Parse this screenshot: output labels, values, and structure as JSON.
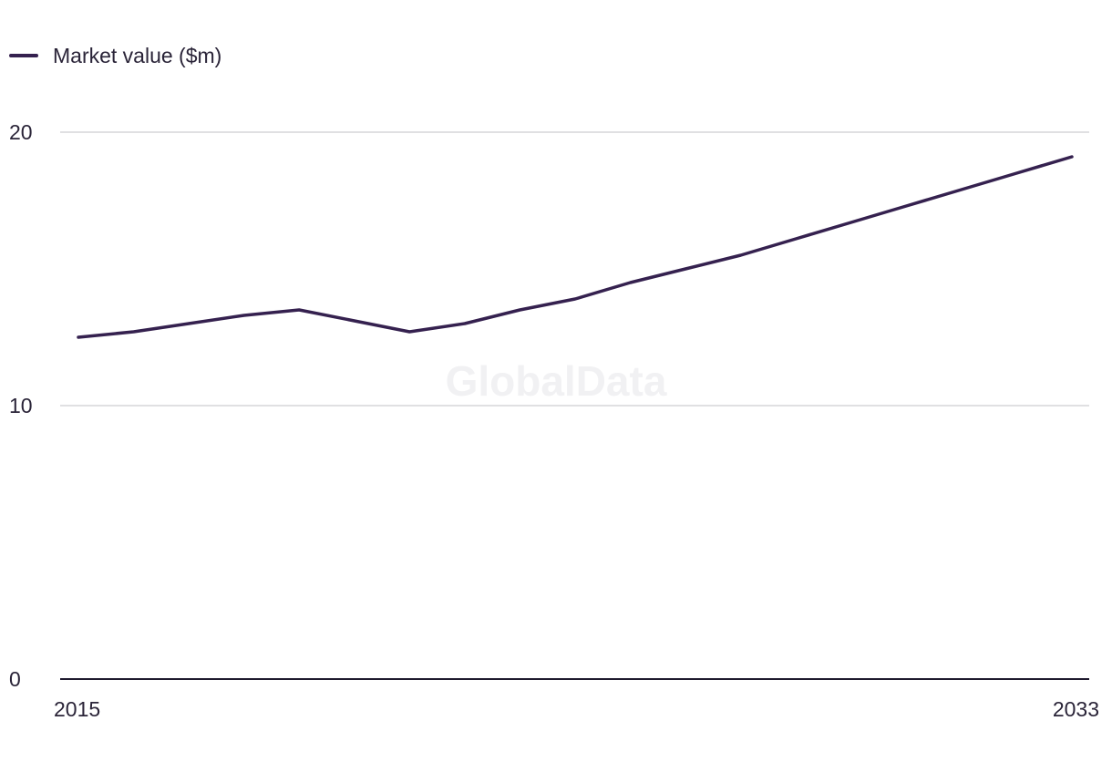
{
  "legend": {
    "label": "Market value ($m)"
  },
  "watermark": "GlobalData",
  "colors": {
    "series": "#35214f"
  },
  "chart_data": {
    "type": "line",
    "title": "",
    "xlabel": "",
    "ylabel": "",
    "x": [
      2015,
      2016,
      2017,
      2018,
      2019,
      2020,
      2021,
      2022,
      2023,
      2024,
      2025,
      2026,
      2027,
      2028,
      2029,
      2030,
      2031,
      2032,
      2033
    ],
    "series": [
      {
        "name": "Market value ($m)",
        "values": [
          12.5,
          12.7,
          13.0,
          13.3,
          13.5,
          13.1,
          12.7,
          13.0,
          13.5,
          13.9,
          14.5,
          15.0,
          15.5,
          16.1,
          16.7,
          17.3,
          17.9,
          18.5,
          19.1
        ]
      }
    ],
    "ylim": [
      0,
      20
    ],
    "yticks": [
      "0",
      "10",
      "20"
    ],
    "xticks": [
      "2015",
      "2033"
    ],
    "grid": true,
    "legend_position": "top-left"
  }
}
